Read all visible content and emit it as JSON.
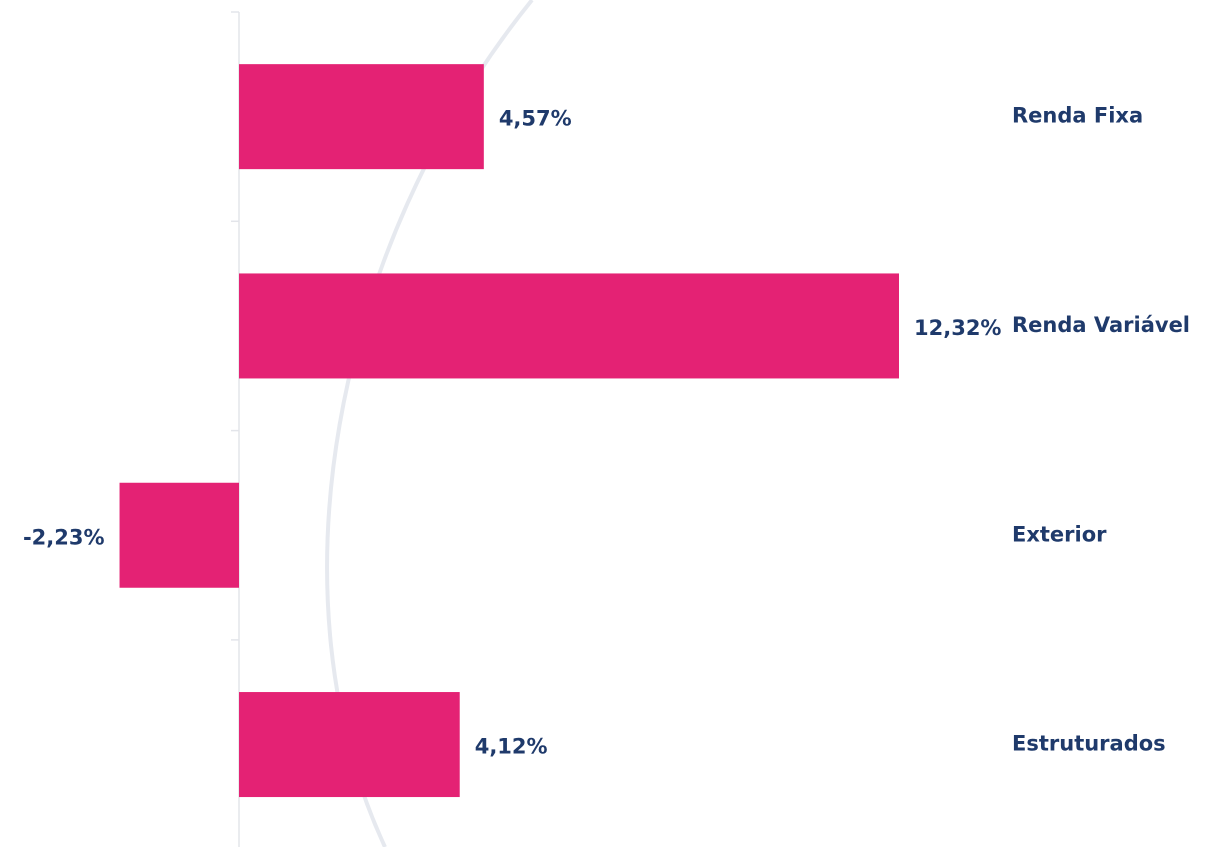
{
  "chart_data": {
    "type": "bar",
    "orientation": "horizontal",
    "categories": [
      "Renda Fixa",
      "Renda Variável",
      "Exterior",
      "Estruturados"
    ],
    "values": [
      4.57,
      12.32,
      -2.23,
      4.12
    ],
    "value_labels": [
      "4,57%",
      "12,32%",
      "-2,23%",
      "4,12%"
    ],
    "color": "#e42274"
  }
}
